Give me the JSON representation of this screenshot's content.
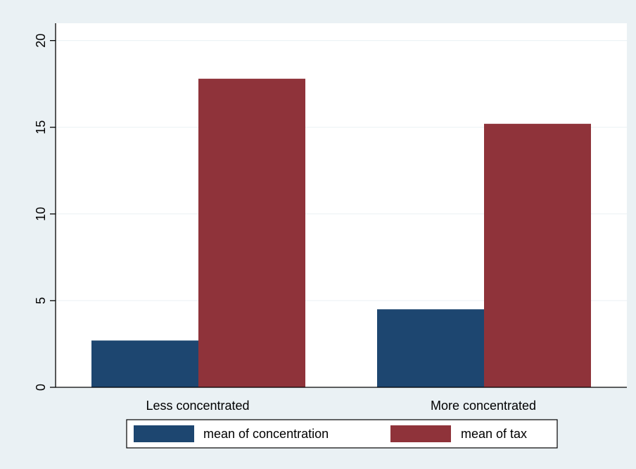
{
  "chart_data": {
    "type": "bar",
    "categories": [
      "Less concentrated",
      "More concentrated"
    ],
    "series": [
      {
        "name": "mean of concentration",
        "color": "#1D4670",
        "values": [
          2.7,
          4.5
        ]
      },
      {
        "name": "mean of tax",
        "color": "#8F333A",
        "values": [
          17.8,
          15.2
        ]
      }
    ],
    "ylim": [
      0,
      21
    ],
    "yticks": [
      0,
      5,
      10,
      15,
      20
    ],
    "ytick_labels": [
      "0",
      "5",
      "10",
      "15",
      "20"
    ],
    "grid": true,
    "legend_position": "bottom",
    "colors": {
      "page_background": "#EAF1F4",
      "plot_background": "#FFFFFF",
      "grid": "#EAF1F4",
      "axis": "#000000"
    }
  }
}
